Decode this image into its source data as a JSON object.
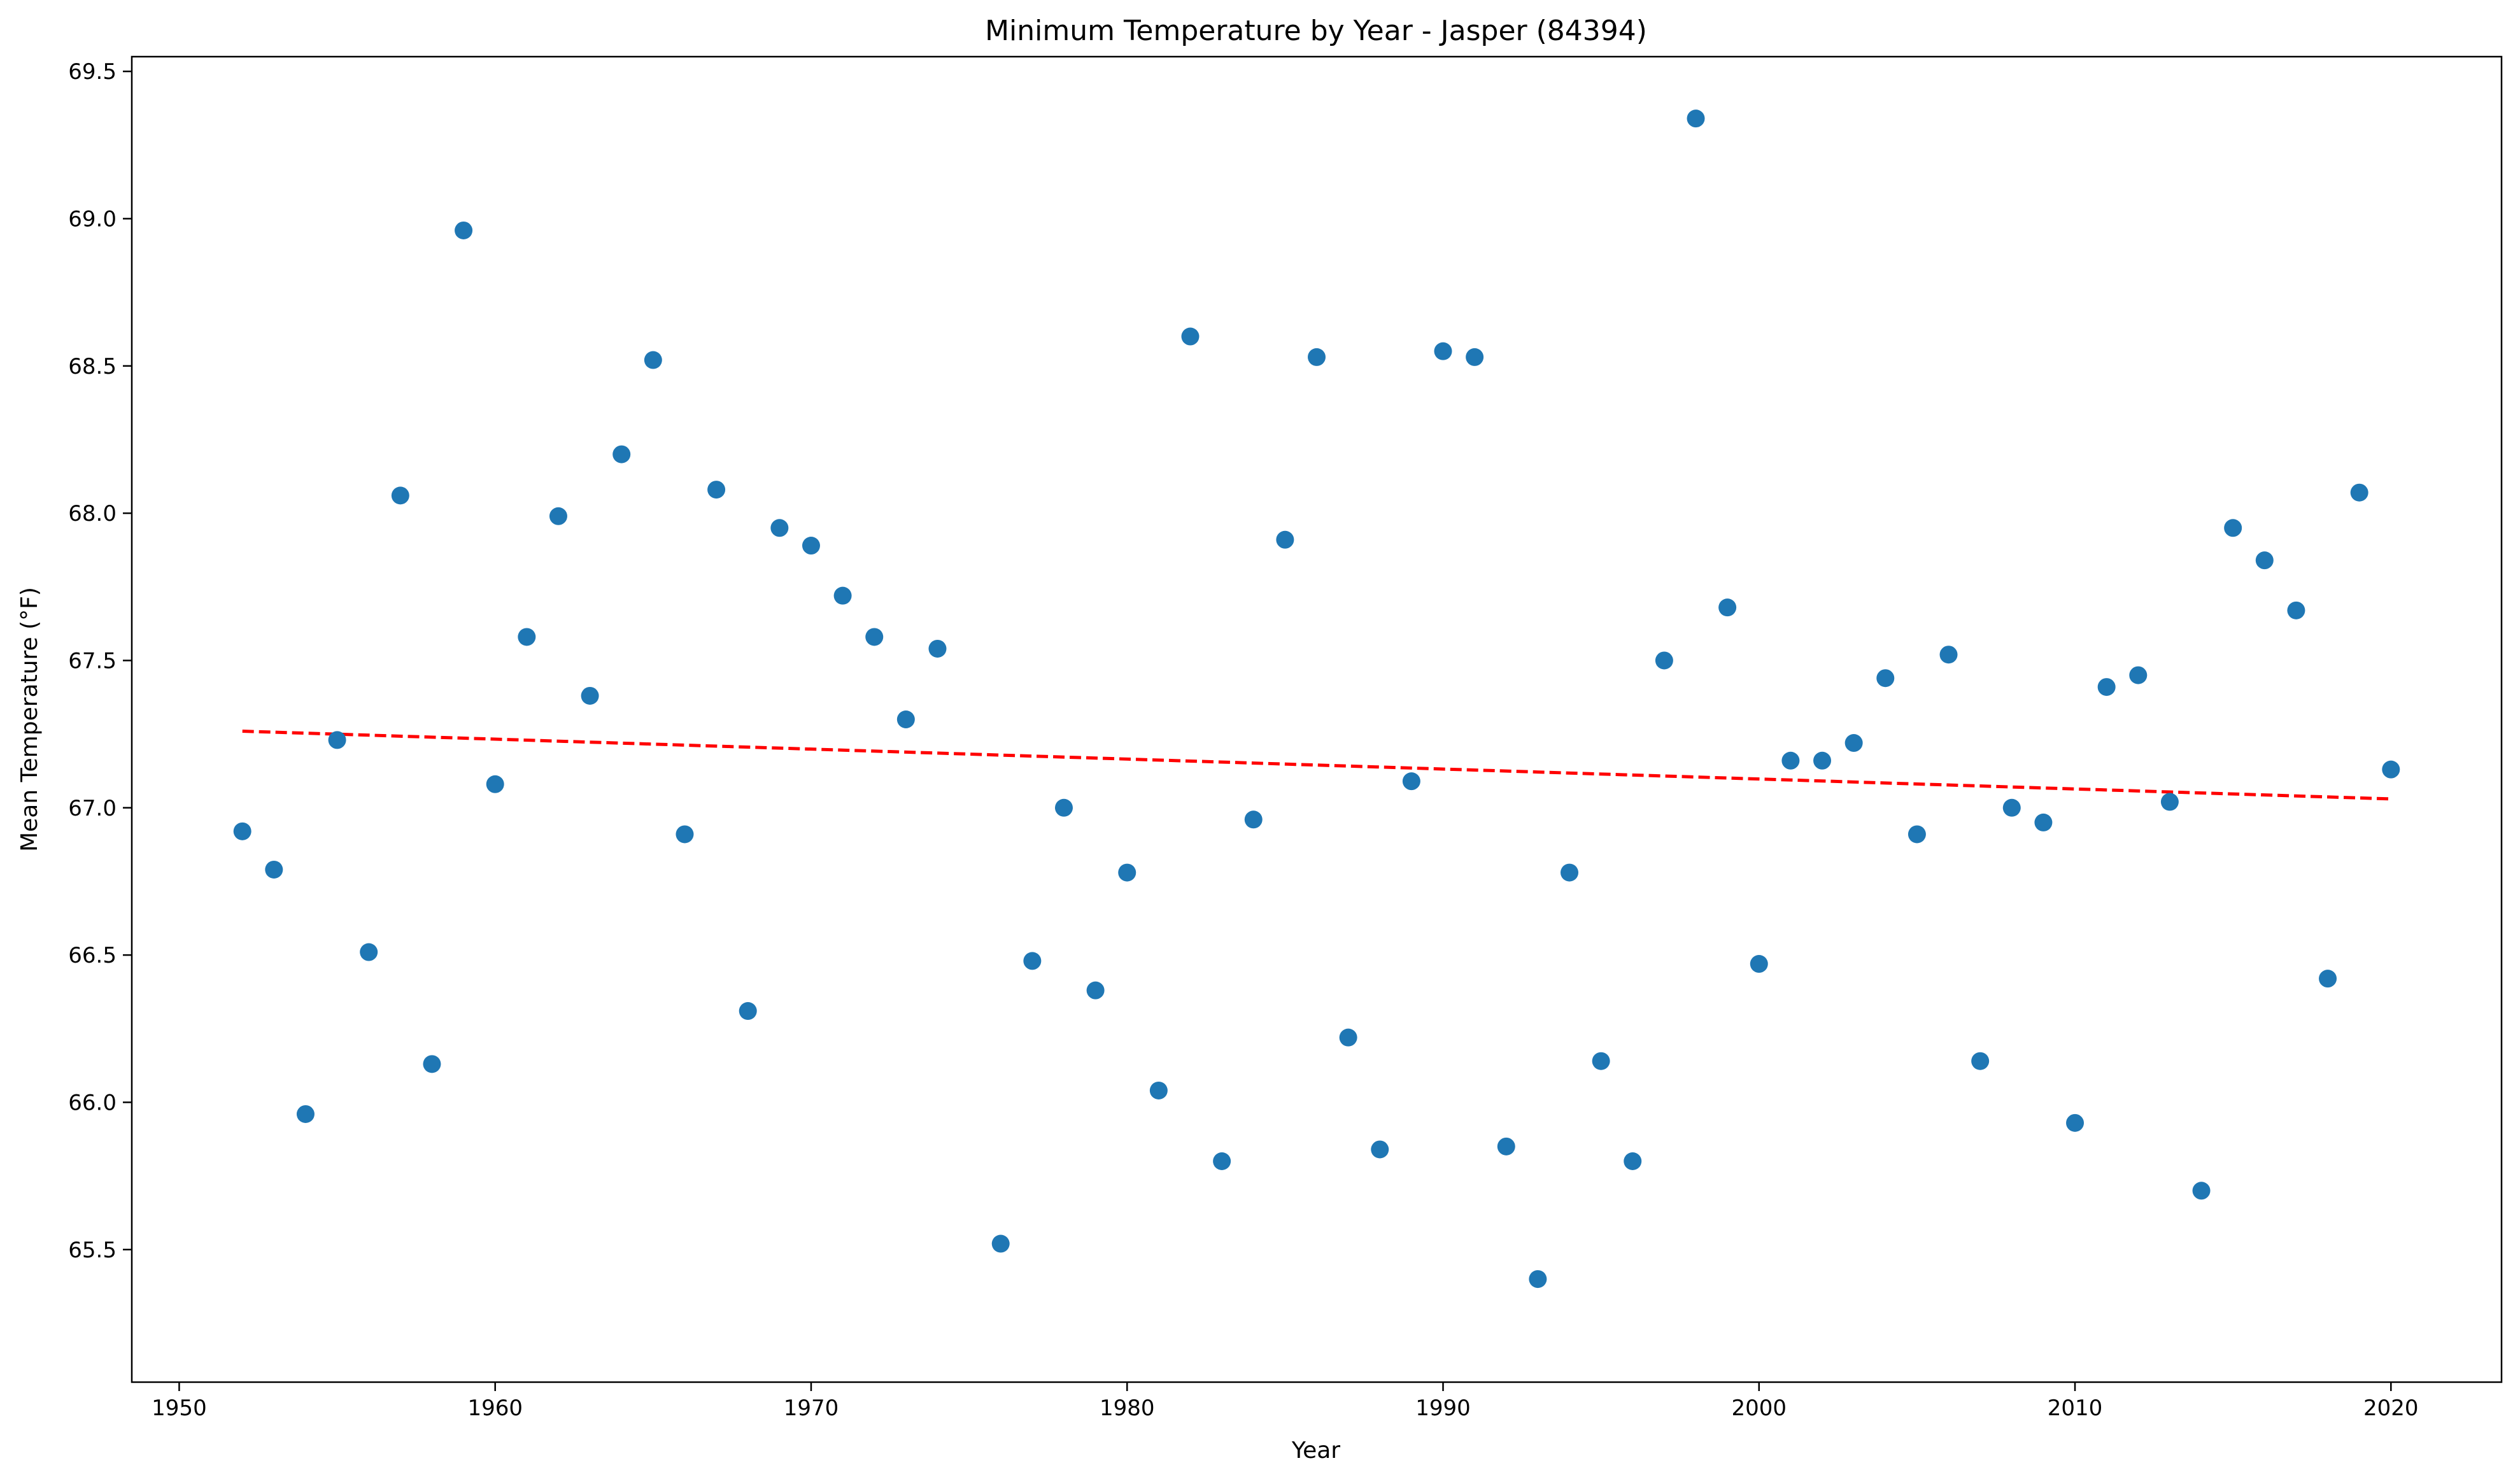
{
  "chart_data": {
    "type": "scatter",
    "title": "Minimum Temperature by Year - Jasper (84394)",
    "xlabel": "Year",
    "ylabel": "Mean Temperature (°F)",
    "xlim": [
      1948.5,
      2023.5
    ],
    "ylim": [
      65.05,
      69.55
    ],
    "x_ticks": [
      1950,
      1960,
      1970,
      1980,
      1990,
      2000,
      2010,
      2020
    ],
    "x_tick_labels": [
      "1950",
      "1960",
      "1970",
      "1980",
      "1990",
      "2000",
      "2010",
      "2020"
    ],
    "y_ticks": [
      65.5,
      66.0,
      66.5,
      67.0,
      67.5,
      68.0,
      68.5,
      69.0,
      69.5
    ],
    "y_tick_labels": [
      "65.5",
      "66.0",
      "66.5",
      "67.0",
      "67.5",
      "68.0",
      "68.5",
      "69.0",
      "69.5"
    ],
    "grid": false,
    "legend": "none",
    "colors": {
      "points": "#1f77b4",
      "trend": "#ff0000"
    },
    "series": [
      {
        "kind": "scatter",
        "x": [
          1952,
          1953,
          1954,
          1955,
          1956,
          1957,
          1958,
          1959,
          1960,
          1961,
          1962,
          1963,
          1964,
          1965,
          1966,
          1967,
          1968,
          1969,
          1970,
          1971,
          1972,
          1973,
          1974,
          1976,
          1977,
          1978,
          1979,
          1980,
          1981,
          1982,
          1983,
          1984,
          1985,
          1986,
          1987,
          1988,
          1989,
          1990,
          1991,
          1992,
          1993,
          1994,
          1995,
          1996,
          1997,
          1998,
          1999,
          2000,
          2001,
          2002,
          2003,
          2004,
          2005,
          2006,
          2007,
          2008,
          2009,
          2010,
          2011,
          2012,
          2013,
          2014,
          2015,
          2016,
          2017,
          2018,
          2019,
          2020
        ],
        "y": [
          66.92,
          66.79,
          65.96,
          67.23,
          66.51,
          68.06,
          66.13,
          68.96,
          67.08,
          67.58,
          67.99,
          67.38,
          68.2,
          68.52,
          66.91,
          68.08,
          66.31,
          67.95,
          67.89,
          67.72,
          67.58,
          67.3,
          67.54,
          65.52,
          66.48,
          67.0,
          66.38,
          66.78,
          66.04,
          68.6,
          65.8,
          66.96,
          67.91,
          68.53,
          66.22,
          65.84,
          67.09,
          68.55,
          68.53,
          65.85,
          65.4,
          66.78,
          66.14,
          65.8,
          67.5,
          69.34,
          67.68,
          66.47,
          67.16,
          67.16,
          67.22,
          67.44,
          66.91,
          67.52,
          66.14,
          67.0,
          66.95,
          65.93,
          67.41,
          67.45,
          67.02,
          65.7,
          67.95,
          67.84,
          67.67,
          66.42,
          68.07,
          67.13
        ]
      },
      {
        "kind": "trend",
        "style": "dashed",
        "x": [
          1952,
          2020
        ],
        "y": [
          67.26,
          67.03
        ]
      }
    ]
  }
}
